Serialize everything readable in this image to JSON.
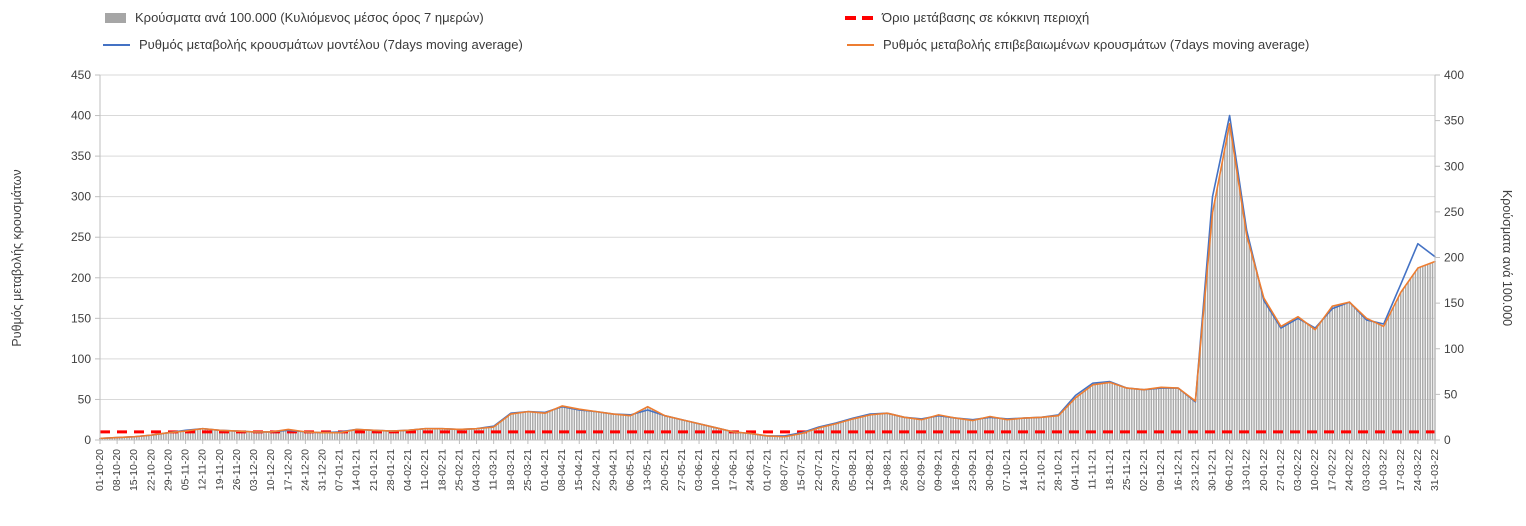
{
  "legend": {
    "bars_label": "Κρούσματα ανά 100.000 (Κυλιόμενος μέσος όρος 7 ημερών)",
    "threshold_label": "Όριο μετάβασης σε κόκκινη περιοχή",
    "model_label": "Ρυθμός μεταβολής κρουσμάτων μοντέλου (7days moving average)",
    "confirmed_label": "Ρυθμός μεταβολής επιβεβαιωμένων κρουσμάτων (7days moving average)"
  },
  "axes": {
    "left_title": "Ρυθμός μεταβολής κρουσμάτων",
    "right_title": "Κρούσματα ανά 100.000"
  },
  "colors": {
    "bars": "#ababab",
    "bars_legend": "#a6a6a6",
    "model": "#4472c4",
    "confirmed": "#ed7d31",
    "threshold": "#ff0000",
    "grid": "#d9d9d9",
    "axis_line": "#bfbfbf",
    "text": "#404040"
  },
  "chart_data": {
    "type": "combo-bar-line",
    "grid": "horizontal",
    "legend_position": "top",
    "categories": [
      "01-10-20",
      "08-10-20",
      "15-10-20",
      "22-10-20",
      "29-10-20",
      "05-11-20",
      "12-11-20",
      "19-11-20",
      "26-11-20",
      "03-12-20",
      "10-12-20",
      "17-12-20",
      "24-12-20",
      "31-12-20",
      "07-01-21",
      "14-01-21",
      "21-01-21",
      "28-01-21",
      "04-02-21",
      "11-02-21",
      "18-02-21",
      "25-02-21",
      "04-03-21",
      "11-03-21",
      "18-03-21",
      "25-03-21",
      "01-04-21",
      "08-04-21",
      "15-04-21",
      "22-04-21",
      "29-04-21",
      "06-05-21",
      "13-05-21",
      "20-05-21",
      "27-05-21",
      "03-06-21",
      "10-06-21",
      "17-06-21",
      "24-06-21",
      "01-07-21",
      "08-07-21",
      "15-07-21",
      "22-07-21",
      "29-07-21",
      "05-08-21",
      "12-08-21",
      "19-08-21",
      "26-08-21",
      "02-09-21",
      "09-09-21",
      "16-09-21",
      "23-09-21",
      "30-09-21",
      "07-10-21",
      "14-10-21",
      "21-10-21",
      "28-10-21",
      "04-11-21",
      "11-11-21",
      "18-11-21",
      "25-11-21",
      "02-12-21",
      "09-12-21",
      "16-12-21",
      "23-12-21",
      "30-12-21",
      "06-01-22",
      "13-01-22",
      "20-01-22",
      "27-01-22",
      "03-02-22",
      "10-02-22",
      "17-02-22",
      "24-02-22",
      "03-03-22",
      "10-03-22",
      "17-03-22",
      "24-03-22",
      "31-03-22"
    ],
    "left_axis": {
      "min": 0,
      "max": 450,
      "ticks": [
        0,
        50,
        100,
        150,
        200,
        250,
        300,
        350,
        400,
        450
      ],
      "title": "Ρυθμός μεταβολής κρουσμάτων"
    },
    "right_axis": {
      "min": 0,
      "max": 400,
      "ticks": [
        0,
        50,
        100,
        150,
        200,
        250,
        300,
        350,
        400
      ],
      "title": "Κρούσματα ανά 100.000"
    },
    "series": [
      {
        "name": "Κρούσματα ανά 100.000 (Κυλιόμενος μέσος όρος 7 ημερών)",
        "type": "bar",
        "axis": "right",
        "values": [
          2,
          3,
          4,
          5,
          8,
          10,
          12,
          11,
          10,
          9,
          9,
          12,
          9,
          8,
          8,
          12,
          11,
          10,
          11,
          12,
          12,
          12,
          12,
          14,
          28,
          31,
          29,
          37,
          34,
          31,
          28,
          27,
          36,
          27,
          22,
          18,
          13,
          9,
          7,
          4,
          4,
          7,
          13,
          18,
          23,
          28,
          29,
          25,
          22,
          28,
          24,
          21,
          26,
          22,
          24,
          25,
          27,
          46,
          60,
          63,
          57,
          55,
          58,
          57,
          43,
          249,
          347,
          224,
          156,
          124,
          135,
          121,
          147,
          151,
          133,
          124,
          162,
          188,
          196
        ]
      },
      {
        "name": "Ρυθμός μεταβολής κρουσμάτων μοντέλου (7days moving average)",
        "type": "line",
        "axis": "left",
        "values": [
          2,
          3,
          4,
          6,
          9,
          12,
          14,
          12,
          11,
          10,
          10,
          12,
          10,
          9,
          10,
          13,
          12,
          11,
          12,
          14,
          14,
          13,
          14,
          17,
          33,
          35,
          34,
          41,
          37,
          35,
          32,
          31,
          37,
          30,
          25,
          20,
          15,
          10,
          8,
          5,
          5,
          9,
          16,
          21,
          27,
          32,
          33,
          28,
          26,
          30,
          27,
          25,
          28,
          26,
          27,
          28,
          31,
          55,
          70,
          72,
          64,
          62,
          64,
          64,
          47,
          300,
          400,
          258,
          172,
          138,
          150,
          138,
          162,
          170,
          148,
          143,
          192,
          242,
          226
        ]
      },
      {
        "name": "Ρυθμός μεταβολής επιβεβαιωμένων κρουσμάτων (7days moving average)",
        "type": "line",
        "axis": "left",
        "values": [
          2,
          3,
          4,
          6,
          9,
          11,
          14,
          12,
          11,
          10,
          10,
          13,
          10,
          9,
          9,
          13,
          12,
          11,
          12,
          14,
          14,
          13,
          14,
          16,
          32,
          35,
          33,
          42,
          38,
          35,
          32,
          30,
          41,
          30,
          25,
          20,
          15,
          10,
          8,
          5,
          4,
          8,
          15,
          20,
          26,
          31,
          33,
          28,
          25,
          31,
          27,
          24,
          29,
          25,
          27,
          28,
          30,
          52,
          68,
          71,
          64,
          62,
          65,
          64,
          48,
          280,
          390,
          252,
          175,
          140,
          152,
          136,
          165,
          170,
          150,
          140,
          182,
          212,
          220
        ]
      },
      {
        "name": "Όριο μετάβασης σε κόκκινη περιοχή",
        "type": "threshold",
        "axis": "left",
        "value": 10
      }
    ]
  }
}
